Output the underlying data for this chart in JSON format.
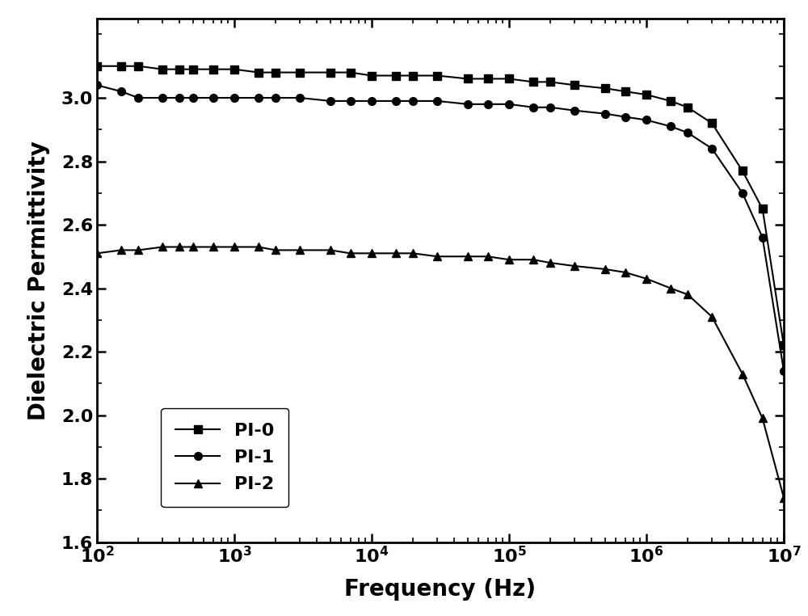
{
  "title": "",
  "xlabel": "Frequency (Hz)",
  "ylabel": "Dielectric Permittivity",
  "xlim": [
    100,
    10000000
  ],
  "ylim": [
    1.6,
    3.25
  ],
  "yticks": [
    1.6,
    1.8,
    2.0,
    2.2,
    2.4,
    2.6,
    2.8,
    3.0
  ],
  "background_color": "#ffffff",
  "series": [
    {
      "label": "PI-0",
      "marker": "s",
      "color": "#000000",
      "x": [
        100,
        150,
        200,
        300,
        400,
        500,
        700,
        1000,
        1500,
        2000,
        3000,
        5000,
        7000,
        10000,
        15000,
        20000,
        30000,
        50000,
        70000,
        100000,
        150000,
        200000,
        300000,
        500000,
        700000,
        1000000,
        1500000,
        2000000,
        3000000,
        5000000,
        7000000,
        10000000
      ],
      "y": [
        3.1,
        3.1,
        3.1,
        3.09,
        3.09,
        3.09,
        3.09,
        3.09,
        3.08,
        3.08,
        3.08,
        3.08,
        3.08,
        3.07,
        3.07,
        3.07,
        3.07,
        3.06,
        3.06,
        3.06,
        3.05,
        3.05,
        3.04,
        3.03,
        3.02,
        3.01,
        2.99,
        2.97,
        2.92,
        2.77,
        2.65,
        2.22
      ]
    },
    {
      "label": "PI-1",
      "marker": "o",
      "color": "#000000",
      "x": [
        100,
        150,
        200,
        300,
        400,
        500,
        700,
        1000,
        1500,
        2000,
        3000,
        5000,
        7000,
        10000,
        15000,
        20000,
        30000,
        50000,
        70000,
        100000,
        150000,
        200000,
        300000,
        500000,
        700000,
        1000000,
        1500000,
        2000000,
        3000000,
        5000000,
        7000000,
        10000000
      ],
      "y": [
        3.04,
        3.02,
        3.0,
        3.0,
        3.0,
        3.0,
        3.0,
        3.0,
        3.0,
        3.0,
        3.0,
        2.99,
        2.99,
        2.99,
        2.99,
        2.99,
        2.99,
        2.98,
        2.98,
        2.98,
        2.97,
        2.97,
        2.96,
        2.95,
        2.94,
        2.93,
        2.91,
        2.89,
        2.84,
        2.7,
        2.56,
        2.14
      ]
    },
    {
      "label": "PI-2",
      "marker": "^",
      "color": "#000000",
      "x": [
        100,
        150,
        200,
        300,
        400,
        500,
        700,
        1000,
        1500,
        2000,
        3000,
        5000,
        7000,
        10000,
        15000,
        20000,
        30000,
        50000,
        70000,
        100000,
        150000,
        200000,
        300000,
        500000,
        700000,
        1000000,
        1500000,
        2000000,
        3000000,
        5000000,
        7000000,
        10000000
      ],
      "y": [
        2.51,
        2.52,
        2.52,
        2.53,
        2.53,
        2.53,
        2.53,
        2.53,
        2.53,
        2.52,
        2.52,
        2.52,
        2.51,
        2.51,
        2.51,
        2.51,
        2.5,
        2.5,
        2.5,
        2.49,
        2.49,
        2.48,
        2.47,
        2.46,
        2.45,
        2.43,
        2.4,
        2.38,
        2.31,
        2.13,
        1.99,
        1.74
      ]
    }
  ],
  "marker_size": 7,
  "linewidth": 1.5,
  "tick_fontsize": 16,
  "label_fontsize": 20,
  "legend_fontsize": 16,
  "spine_linewidth": 2.0
}
